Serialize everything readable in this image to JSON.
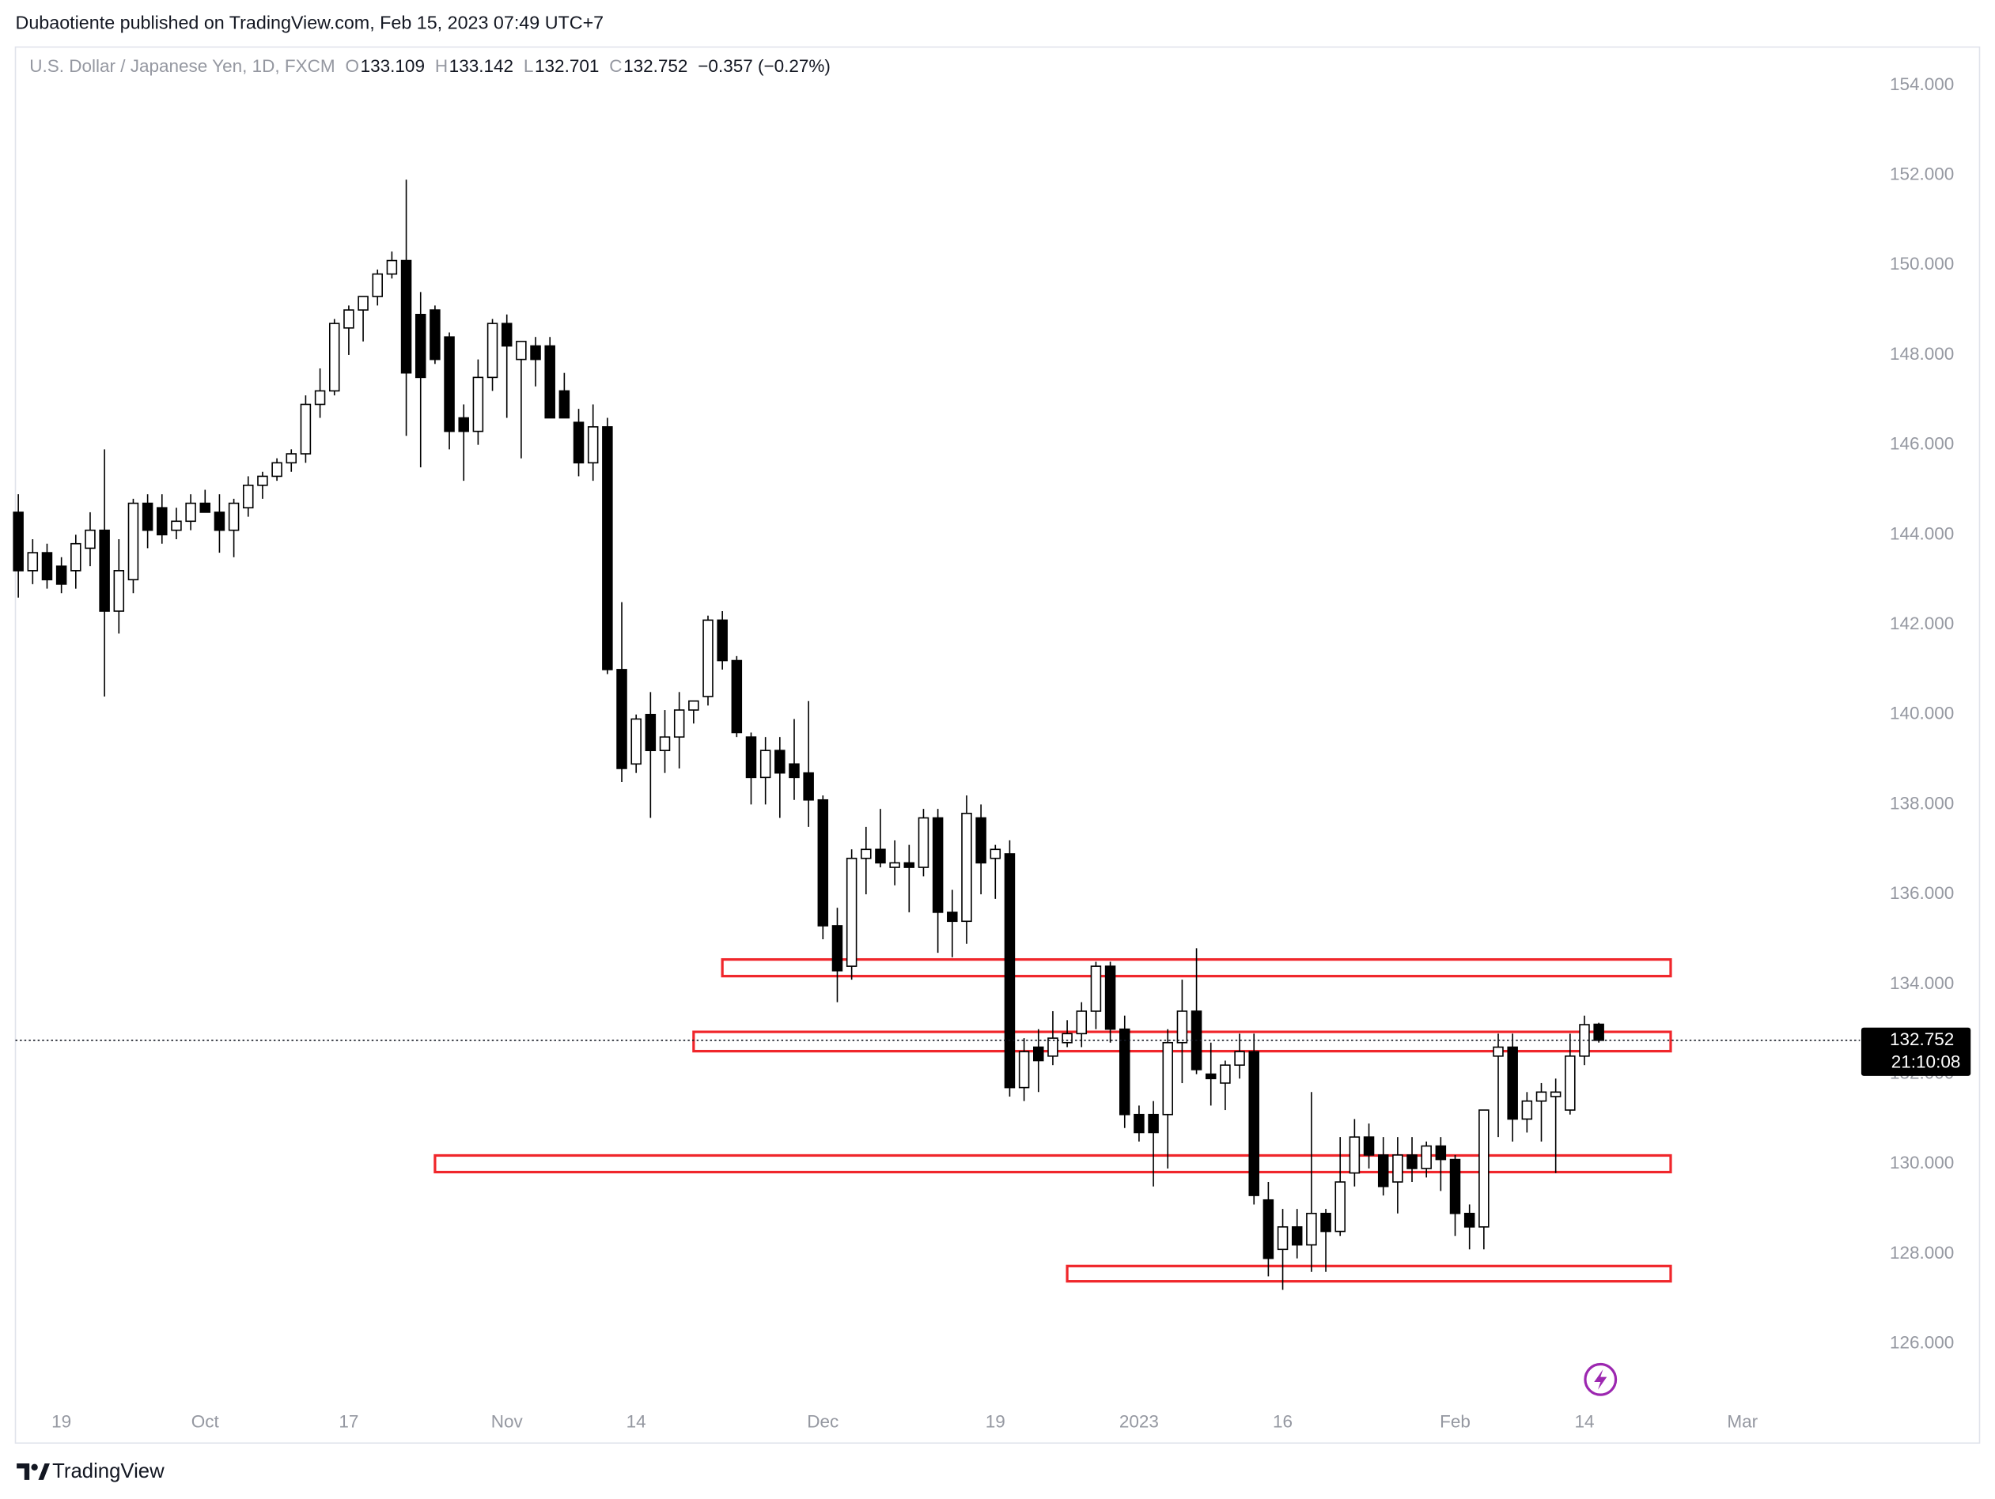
{
  "publisher_line": "Dubaotiente published on TradingView.com, Feb 15, 2023 07:49 UTC+7",
  "footer_brand": "TradingView",
  "chart_data": {
    "type": "candlestick",
    "title": "U.S. Dollar / Japanese Yen, 1D, FXCM",
    "ohlc_labels": [
      "O",
      "H",
      "L",
      "C"
    ],
    "change_label": "−0.357 (−0.27%)",
    "countdown": "21:10:08",
    "up_color": "#ffffff",
    "down_color": "#000000",
    "zone_color": "#f0262b",
    "open": [
      144.5,
      143.2,
      143.6,
      143.3,
      143.2,
      143.7,
      144.1,
      142.3,
      143.0,
      144.7,
      144.6,
      144.1,
      144.3,
      144.7,
      144.5,
      144.1,
      144.6,
      145.1,
      145.3,
      145.6,
      145.8,
      146.9,
      147.2,
      148.6,
      149.0,
      149.3,
      149.8,
      150.1,
      148.9,
      149.0,
      148.4,
      146.6,
      146.3,
      147.5,
      148.7,
      147.9,
      148.2,
      148.2,
      147.2,
      146.5,
      145.6,
      146.4,
      141.0,
      138.9,
      140.0,
      139.2,
      139.5,
      140.1,
      140.4,
      142.1,
      141.2,
      139.5,
      138.6,
      139.2,
      138.9,
      138.7,
      138.1,
      135.3,
      134.4,
      136.8,
      137.0,
      136.6,
      136.7,
      136.6,
      137.7,
      135.6,
      135.4,
      137.7,
      136.8,
      136.9,
      131.7,
      132.6,
      132.4,
      132.7,
      132.9,
      133.4,
      134.4,
      133.0,
      131.1,
      131.1,
      131.1,
      132.7,
      133.4,
      132.0,
      131.8,
      132.2,
      132.5,
      129.2,
      128.1,
      128.6,
      128.2,
      128.9,
      128.5,
      129.8,
      130.6,
      130.2,
      129.6,
      130.2,
      129.9,
      130.4,
      130.1,
      128.9,
      128.6,
      132.4,
      132.6,
      131.0,
      131.4,
      131.5,
      131.2,
      132.4,
      133.109
    ],
    "high": [
      144.9,
      143.9,
      143.8,
      143.5,
      144.0,
      144.5,
      145.9,
      143.9,
      144.8,
      144.9,
      144.9,
      144.6,
      144.9,
      145.0,
      144.9,
      144.8,
      145.3,
      145.4,
      145.7,
      145.9,
      147.1,
      147.7,
      148.8,
      149.1,
      149.3,
      149.9,
      150.3,
      151.9,
      149.4,
      149.1,
      148.5,
      146.9,
      147.9,
      148.8,
      148.9,
      148.3,
      148.4,
      148.4,
      147.6,
      146.8,
      146.9,
      146.6,
      142.5,
      140.0,
      140.5,
      140.1,
      140.5,
      140.3,
      142.2,
      142.3,
      141.3,
      139.6,
      139.5,
      139.5,
      139.9,
      140.3,
      138.2,
      135.7,
      137.0,
      137.5,
      137.9,
      137.2,
      137.1,
      137.9,
      137.9,
      136.1,
      138.2,
      138.0,
      137.1,
      137.2,
      132.8,
      133.0,
      133.4,
      133.2,
      133.6,
      134.5,
      134.5,
      133.3,
      131.3,
      131.4,
      133.0,
      134.1,
      134.8,
      132.7,
      132.3,
      132.9,
      132.9,
      129.6,
      129.0,
      129.0,
      131.6,
      129.0,
      130.6,
      131.0,
      130.9,
      130.6,
      130.6,
      130.6,
      130.5,
      130.6,
      130.2,
      129.1,
      131.2,
      132.9,
      132.9,
      131.6,
      131.8,
      131.9,
      132.9,
      133.3,
      133.142
    ],
    "low": [
      142.6,
      142.9,
      142.8,
      142.7,
      142.8,
      143.3,
      140.4,
      141.8,
      142.7,
      143.7,
      143.8,
      143.9,
      144.1,
      144.5,
      143.6,
      143.5,
      144.4,
      144.8,
      145.2,
      145.4,
      145.6,
      146.6,
      147.1,
      148.0,
      148.3,
      149.1,
      149.7,
      146.2,
      145.5,
      147.8,
      145.9,
      145.2,
      146.0,
      147.2,
      146.6,
      145.7,
      147.3,
      146.6,
      146.6,
      145.3,
      145.2,
      140.9,
      138.5,
      138.7,
      137.7,
      138.7,
      138.8,
      139.8,
      140.2,
      141.0,
      139.5,
      138.0,
      138.0,
      137.7,
      138.1,
      137.5,
      135.0,
      133.6,
      134.1,
      136.0,
      136.6,
      136.2,
      135.6,
      136.4,
      134.7,
      134.6,
      134.9,
      136.0,
      135.9,
      131.5,
      131.4,
      131.6,
      132.2,
      132.6,
      132.6,
      133.0,
      132.7,
      130.8,
      130.5,
      129.5,
      129.9,
      131.8,
      132.0,
      131.3,
      131.2,
      131.9,
      129.1,
      127.5,
      127.2,
      127.9,
      127.6,
      127.6,
      128.4,
      129.5,
      129.9,
      129.3,
      128.9,
      129.6,
      129.7,
      129.4,
      128.4,
      128.1,
      128.1,
      130.6,
      130.5,
      130.7,
      130.5,
      129.8,
      131.1,
      132.2,
      132.701
    ],
    "close": [
      143.2,
      143.6,
      143.0,
      142.9,
      143.8,
      144.1,
      142.3,
      143.2,
      144.7,
      144.1,
      144.0,
      144.3,
      144.7,
      144.5,
      144.1,
      144.7,
      145.1,
      145.3,
      145.6,
      145.8,
      146.9,
      147.2,
      148.7,
      149.0,
      149.3,
      149.8,
      150.1,
      147.6,
      147.5,
      147.9,
      146.3,
      146.3,
      147.5,
      148.7,
      148.2,
      148.3,
      147.9,
      146.6,
      146.6,
      145.6,
      146.4,
      141.0,
      138.8,
      139.9,
      139.2,
      139.5,
      140.1,
      140.3,
      142.1,
      141.2,
      139.6,
      138.6,
      139.2,
      138.7,
      138.6,
      138.1,
      135.3,
      134.3,
      136.8,
      137.0,
      136.7,
      136.7,
      136.6,
      137.7,
      135.6,
      135.4,
      137.8,
      136.7,
      137.0,
      131.7,
      132.5,
      132.3,
      132.8,
      132.9,
      133.4,
      134.4,
      133.0,
      131.1,
      130.7,
      130.7,
      132.7,
      133.4,
      132.1,
      131.9,
      132.2,
      132.5,
      129.3,
      127.9,
      128.6,
      128.2,
      128.9,
      128.5,
      129.6,
      130.6,
      130.2,
      129.5,
      130.2,
      129.9,
      130.4,
      130.1,
      128.9,
      128.6,
      131.2,
      132.6,
      131.0,
      131.4,
      131.6,
      131.6,
      132.4,
      133.1,
      132.752
    ],
    "zones": [
      {
        "from": 49,
        "to": 115,
        "low": 134.18,
        "high": 134.55
      },
      {
        "from": 47,
        "to": 115,
        "low": 132.51,
        "high": 132.94
      },
      {
        "from": 29,
        "to": 115,
        "low": 129.82,
        "high": 130.19
      },
      {
        "from": 73,
        "to": 115,
        "low": 127.39,
        "high": 127.73
      }
    ],
    "xlim": [
      -0.2,
      128
    ],
    "xticks": [
      {
        "value": 3,
        "label": "19"
      },
      {
        "value": 13,
        "label": "Oct"
      },
      {
        "value": 23,
        "label": "17"
      },
      {
        "value": 34,
        "label": "Nov"
      },
      {
        "value": 43,
        "label": "14"
      },
      {
        "value": 56,
        "label": "Dec"
      },
      {
        "value": 68,
        "label": "19"
      },
      {
        "value": 78,
        "label": "2023"
      },
      {
        "value": 88,
        "label": "16"
      },
      {
        "value": 100,
        "label": "Feb"
      },
      {
        "value": 109,
        "label": "14"
      },
      {
        "value": 120,
        "label": "Mar"
      }
    ],
    "ylim": [
      124.64,
      154.85
    ],
    "yticks": [
      {
        "value": 126,
        "label": "126.000"
      },
      {
        "value": 128,
        "label": "128.000"
      },
      {
        "value": 130,
        "label": "130.000"
      },
      {
        "value": 132,
        "label": "132.000"
      },
      {
        "value": 134,
        "label": "134.000"
      },
      {
        "value": 136,
        "label": "136.000"
      },
      {
        "value": 138,
        "label": "138.000"
      },
      {
        "value": 140,
        "label": "140.000"
      },
      {
        "value": 142,
        "label": "142.000"
      },
      {
        "value": 144,
        "label": "144.000"
      },
      {
        "value": 146,
        "label": "146.000"
      },
      {
        "value": 148,
        "label": "148.000"
      },
      {
        "value": 150,
        "label": "150.000"
      },
      {
        "value": 152,
        "label": "152.000"
      },
      {
        "value": 154,
        "label": "154.000"
      }
    ]
  }
}
